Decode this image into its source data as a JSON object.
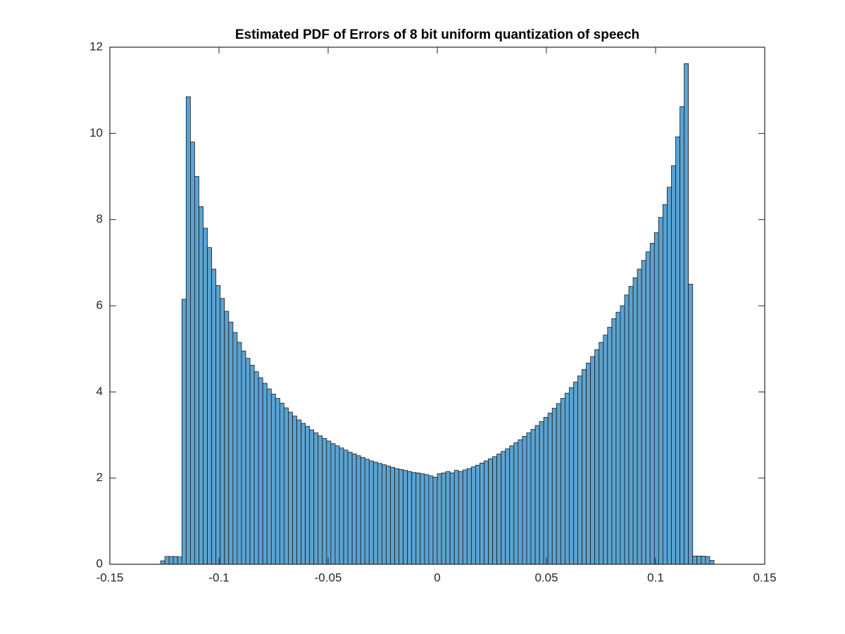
{
  "chart_data": {
    "type": "histogram",
    "title": "Estimated PDF of Errors of 8 bit uniform quantization of speech",
    "bins": [
      -0.12675,
      -0.1248,
      -0.12285,
      -0.1209,
      -0.11895,
      -0.117,
      -0.11505,
      -0.1131,
      -0.11115,
      -0.1092,
      -0.10725,
      -0.1053,
      -0.10335,
      -0.1014,
      -0.09945,
      -0.0975,
      -0.09555,
      -0.0936,
      -0.09165,
      -0.0897,
      -0.08775,
      -0.0858,
      -0.08385,
      -0.0819,
      -0.07995,
      -0.078,
      -0.07605,
      -0.0741,
      -0.07215,
      -0.0702,
      -0.06825,
      -0.0663,
      -0.06435,
      -0.0624,
      -0.06045,
      -0.0585,
      -0.05655,
      -0.0546,
      -0.05265,
      -0.0507,
      -0.04875,
      -0.0468,
      -0.04485,
      -0.0429,
      -0.04095,
      -0.039,
      -0.03705,
      -0.0351,
      -0.03315,
      -0.0312,
      -0.02925,
      -0.0273,
      -0.02535,
      -0.0234,
      -0.02145,
      -0.0195,
      -0.01755,
      -0.0156,
      -0.01365,
      -0.0117,
      -0.00975,
      -0.0078,
      -0.00585,
      -0.0039,
      -0.00195,
      0,
      0.00195,
      0.0039,
      0.00585,
      0.0078,
      0.00975,
      0.0117,
      0.01365,
      0.0156,
      0.01755,
      0.0195,
      0.02145,
      0.0234,
      0.02535,
      0.0273,
      0.02925,
      0.0312,
      0.03315,
      0.0351,
      0.03705,
      0.039,
      0.04095,
      0.0429,
      0.04485,
      0.0468,
      0.04875,
      0.0507,
      0.05265,
      0.0546,
      0.05655,
      0.0585,
      0.06045,
      0.0624,
      0.06435,
      0.0663,
      0.06825,
      0.0702,
      0.07215,
      0.0741,
      0.07605,
      0.078,
      0.07995,
      0.0819,
      0.08385,
      0.0858,
      0.08775,
      0.0897,
      0.09165,
      0.0936,
      0.09555,
      0.0975,
      0.09945,
      0.1014,
      0.10335,
      0.1053,
      0.10725,
      0.1092,
      0.11115,
      0.1131,
      0.11505,
      0.117,
      0.11895,
      0.1209,
      0.12285,
      0.1248,
      0.12675
    ],
    "values": [
      0.08,
      0.18,
      0.18,
      0.18,
      0.17,
      6.15,
      10.85,
      9.8,
      9.0,
      8.3,
      7.8,
      7.35,
      6.85,
      6.47,
      6.17,
      5.87,
      5.62,
      5.38,
      5.15,
      4.95,
      4.78,
      4.62,
      4.47,
      4.33,
      4.2,
      4.07,
      3.95,
      3.85,
      3.74,
      3.63,
      3.53,
      3.44,
      3.35,
      3.27,
      3.2,
      3.12,
      3.05,
      2.98,
      2.92,
      2.86,
      2.8,
      2.75,
      2.7,
      2.65,
      2.6,
      2.56,
      2.52,
      2.48,
      2.44,
      2.4,
      2.37,
      2.34,
      2.31,
      2.28,
      2.25,
      2.22,
      2.2,
      2.18,
      2.15,
      2.13,
      2.12,
      2.1,
      2.08,
      2.05,
      2.02,
      2.1,
      2.12,
      2.15,
      2.12,
      2.18,
      2.15,
      2.19,
      2.22,
      2.26,
      2.3,
      2.35,
      2.4,
      2.45,
      2.5,
      2.56,
      2.62,
      2.68,
      2.75,
      2.82,
      2.89,
      2.97,
      3.05,
      3.13,
      3.22,
      3.31,
      3.41,
      3.51,
      3.62,
      3.73,
      3.85,
      3.97,
      4.1,
      4.23,
      4.37,
      4.52,
      4.67,
      4.82,
      4.98,
      5.15,
      5.32,
      5.5,
      5.7,
      5.85,
      6.0,
      6.25,
      6.45,
      6.65,
      6.85,
      7.05,
      7.25,
      7.45,
      7.7,
      8.05,
      8.35,
      8.75,
      9.25,
      9.92,
      10.62,
      11.62,
      6.5,
      0.19,
      0.19,
      0.19,
      0.18,
      0.09
    ],
    "color": "#5ba3d1",
    "xlim": [
      -0.15,
      0.15
    ],
    "xticks": [
      -0.15,
      -0.1,
      -0.05,
      0,
      0.05,
      0.1,
      0.15
    ],
    "ylim": [
      0,
      12
    ],
    "yticks": [
      0,
      2,
      4,
      6,
      8,
      10,
      12
    ],
    "grid": false
  }
}
